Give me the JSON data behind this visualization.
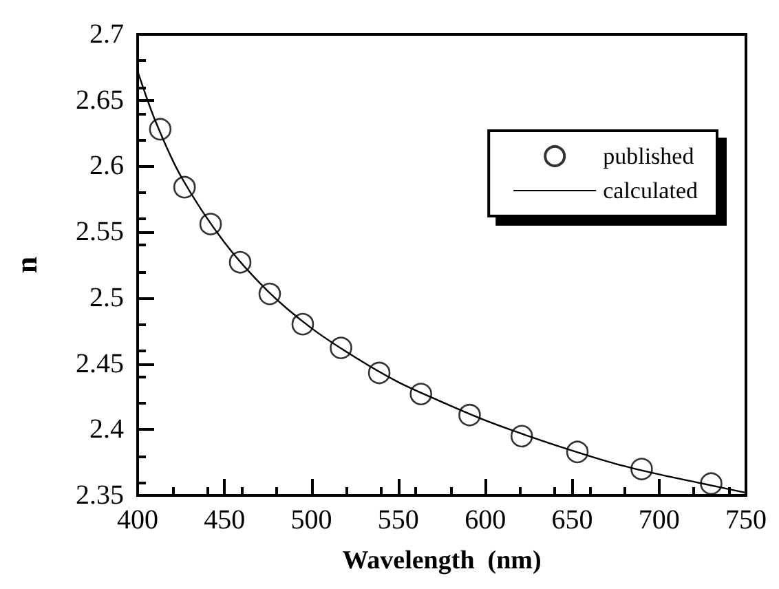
{
  "chart_data": {
    "type": "scatter",
    "xlabel": "Wavelength  (nm)",
    "ylabel": "n",
    "xlim": [
      400,
      750
    ],
    "xticks": [
      400,
      450,
      500,
      550,
      600,
      650,
      700,
      750
    ],
    "ylim": [
      2.35,
      2.7
    ],
    "yticks": [
      2.35,
      2.4,
      2.45,
      2.5,
      2.55,
      2.6,
      2.65,
      2.7
    ],
    "grid": false,
    "legend": "top right",
    "series": [
      {
        "name": "published",
        "marker": "circle",
        "color": "#000000",
        "x": [
          413,
          427,
          442,
          459,
          476,
          495,
          517,
          539,
          563,
          591,
          621,
          653,
          690,
          730
        ],
        "values": [
          2.628,
          2.584,
          2.556,
          2.527,
          2.503,
          2.48,
          2.462,
          2.443,
          2.427,
          2.411,
          2.395,
          2.383,
          2.37,
          2.359
        ]
      },
      {
        "name": "calculated",
        "type": "line",
        "marker": "none",
        "line_style": "solid",
        "color": "#000000",
        "x": [
          400,
          410,
          425,
          450,
          475,
          500,
          525,
          550,
          575,
          600,
          625,
          650,
          675,
          700,
          725,
          750
        ],
        "values": [
          2.672,
          2.635,
          2.592,
          2.542,
          2.505,
          2.477,
          2.455,
          2.436,
          2.421,
          2.407,
          2.395,
          2.384,
          2.374,
          2.366,
          2.359,
          2.352
        ]
      }
    ]
  }
}
